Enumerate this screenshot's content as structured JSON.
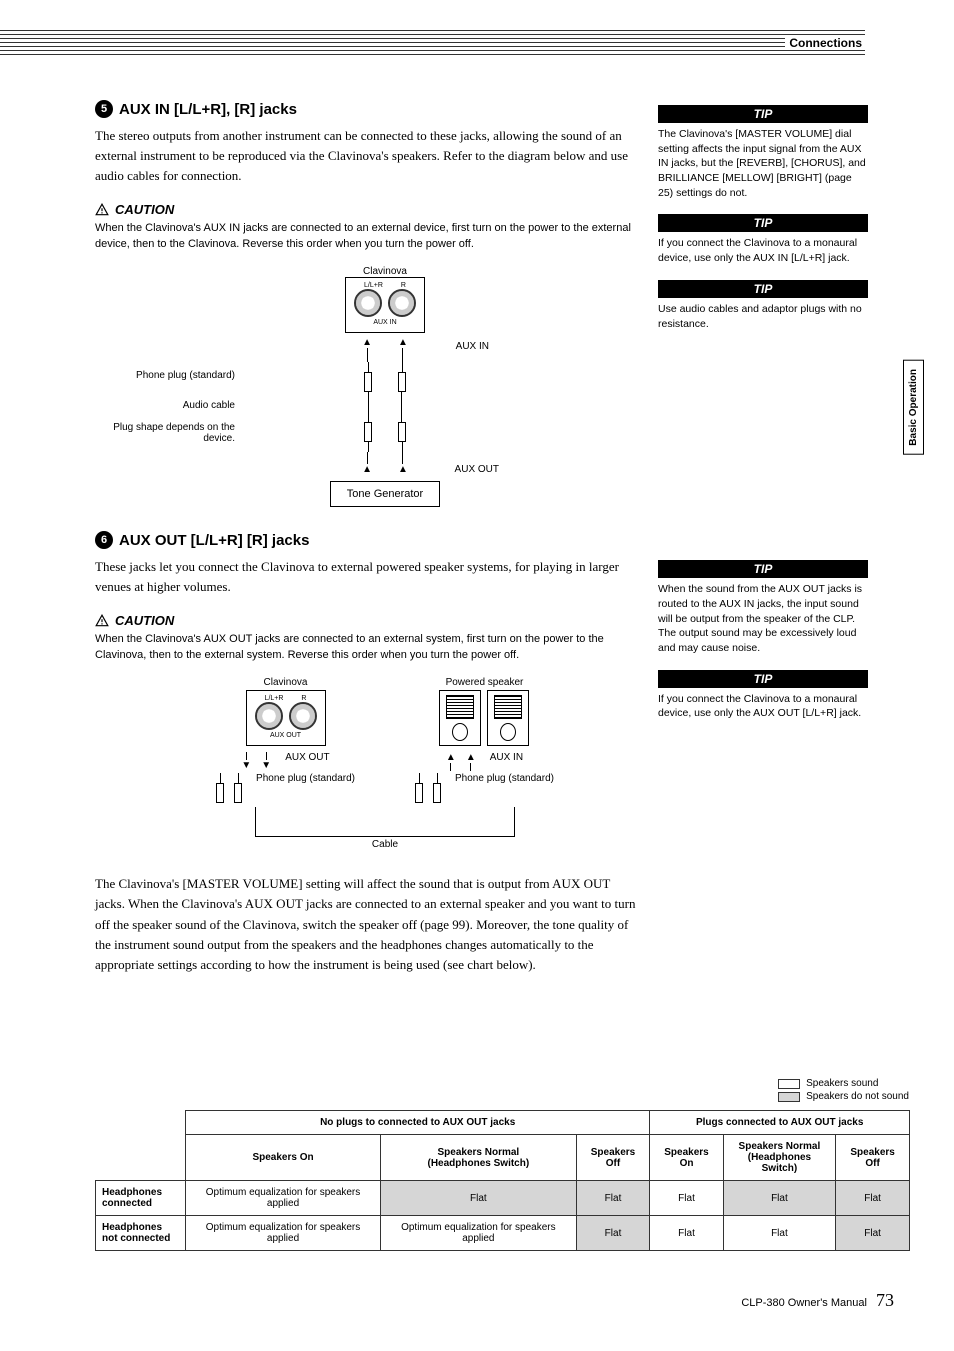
{
  "header": {
    "section": "Connections",
    "side_tab": "Basic Operation"
  },
  "sec5": {
    "num": "5",
    "title": "AUX IN [L/L+R], [R] jacks",
    "body": "The stereo outputs from another instrument can be connected to these jacks, allowing the sound of an external instrument to be reproduced via the Clavinova's speakers. Refer to the diagram below and use audio cables for connection.",
    "caution": "CAUTION",
    "caution_body": "When the Clavinova's AUX IN jacks are connected to an external device, first turn on the power to the external device, then to the Clavinova. Reverse this order when you turn the power off.",
    "diagram": {
      "clavinova": "Clavinova",
      "jacks_caption_l": "L/L+R",
      "jacks_caption_r": "R",
      "jacks_caption_bottom": "AUX IN",
      "aux_in": "AUX IN",
      "phone_plug": "Phone plug (standard)",
      "audio_cable": "Audio cable",
      "plug_depends": "Plug shape depends on the device.",
      "aux_out": "AUX OUT",
      "tone_generator": "Tone Generator"
    }
  },
  "sec6": {
    "num": "6",
    "title": "AUX OUT [L/L+R] [R] jacks",
    "body": "These jacks let you connect the Clavinova to external powered speaker systems, for playing in larger venues at higher volumes.",
    "caution": "CAUTION",
    "caution_body": "When the Clavinova's AUX OUT jacks are connected to an external system, first turn on the power to the Clavinova, then to the external system. Reverse this order when you turn the power off.",
    "diagram": {
      "clavinova": "Clavinova",
      "powered_speaker": "Powered speaker",
      "jacks_caption_l": "L/L+R",
      "jacks_caption_r": "R",
      "jacks_caption_bottom": "AUX OUT",
      "aux_out": "AUX OUT",
      "aux_in": "AUX IN",
      "phone_plug": "Phone plug (standard)",
      "cable": "Cable"
    },
    "body2": "The Clavinova's [MASTER VOLUME] setting will affect the sound that is output from AUX OUT jacks. When the Clavinova's AUX OUT jacks are connected to an external speaker and you want to turn off the speaker sound of the Clavinova, switch the speaker off (page 99). Moreover, the tone quality of the instrument sound output from the speakers and the headphones changes automatically to the appropriate settings according to how the instrument is being used (see chart below)."
  },
  "tips": {
    "t1": "The Clavinova's [MASTER VOLUME] dial setting affects the input signal from the AUX IN jacks, but the [REVERB], [CHORUS], and BRILLIANCE [MELLOW] [BRIGHT] (page 25) settings do not.",
    "t2": "If you connect the Clavinova to a monaural device, use only the AUX IN [L/L+R] jack.",
    "t3": "Use audio cables and adaptor plugs with no resistance.",
    "t4": "When the sound from the AUX OUT jacks is routed to the AUX IN jacks, the input sound will be output from the speaker of the CLP. The output sound may be excessively loud and may cause noise.",
    "t5": "If you connect the Clavinova to a monaural device, use only the AUX OUT [L/L+R] jack.",
    "label": "TIP"
  },
  "legend": {
    "sound": "Speakers sound",
    "nosound": "Speakers do not sound",
    "color_sound": "#ffffff",
    "color_nosound": "#d6d6d6"
  },
  "table": {
    "group1": "No plugs to connected to AUX OUT jacks",
    "group2": "Plugs connected to AUX OUT jacks",
    "cols": [
      "Speakers On",
      "Speakers Normal (Headphones Switch)",
      "Speakers Off",
      "Speakers On",
      "Speakers Normal (Headphones Switch)",
      "Speakers Off"
    ],
    "rows": [
      {
        "head": "Headphones connected",
        "cells": [
          "Optimum equalization for speakers applied",
          "Flat",
          "Flat",
          "Flat",
          "Flat",
          "Flat"
        ],
        "shade": [
          false,
          true,
          true,
          false,
          true,
          true
        ]
      },
      {
        "head": "Headphones not connected",
        "cells": [
          "Optimum equalization for speakers applied",
          "Optimum equalization for speakers applied",
          "Flat",
          "Flat",
          "Flat",
          "Flat"
        ],
        "shade": [
          false,
          false,
          true,
          false,
          false,
          true
        ]
      }
    ]
  },
  "footer": {
    "manual": "CLP-380 Owner's Manual",
    "page": "73"
  }
}
